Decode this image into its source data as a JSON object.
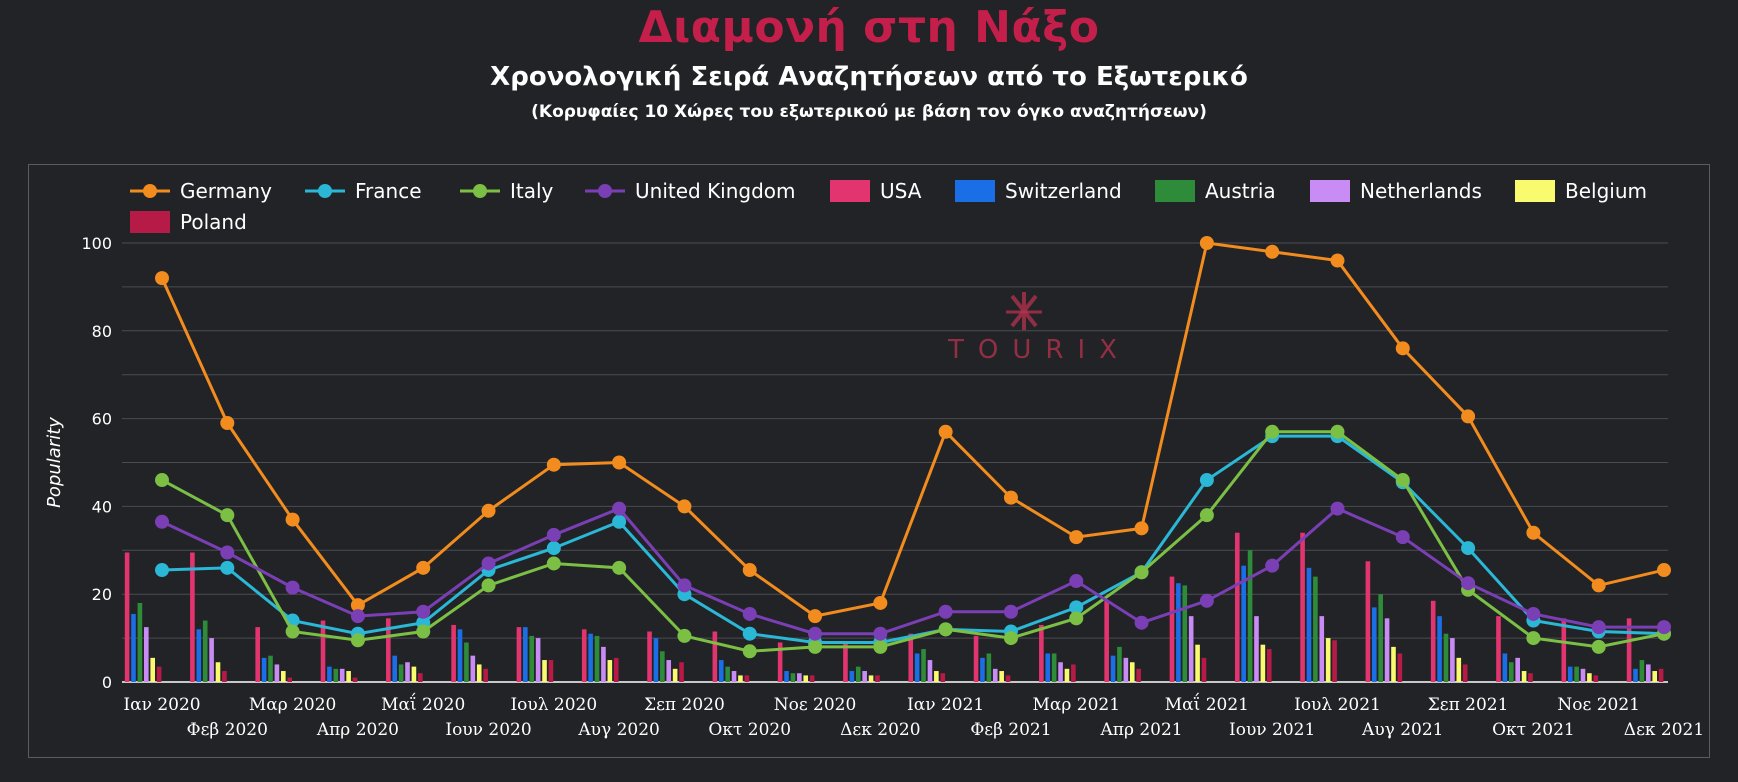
{
  "header": {
    "title": "Διαμονή στη Νάξο",
    "subtitle": "Χρονολογική Σειρά Αναζητήσεων από το Εξωτερικό",
    "note": "(Κορυφαίες 10 Χώρες του εξωτερικού με βάση τον όγκο αναζητήσεων)"
  },
  "watermark": {
    "text": "TOURIX"
  },
  "chart_data": {
    "type": "bar+line",
    "ylabel": "Popularity",
    "ylim": [
      0,
      100
    ],
    "yticks": [
      0,
      20,
      40,
      60,
      80,
      100
    ],
    "grid": true,
    "legend_position": "top",
    "categories": [
      "Ιαν 2020",
      "Φεβ 2020",
      "Μαρ 2020",
      "Απρ 2020",
      "Μαΐ 2020",
      "Ιουν 2020",
      "Ιουλ 2020",
      "Αυγ 2020",
      "Σεπ 2020",
      "Οκτ 2020",
      "Νοε 2020",
      "Δεκ 2020",
      "Ιαν 2021",
      "Φεβ 2021",
      "Μαρ 2021",
      "Απρ 2021",
      "Μαΐ 2021",
      "Ιουν 2021",
      "Ιουλ 2021",
      "Αυγ 2021",
      "Σεπ 2021",
      "Οκτ 2021",
      "Νοε 2021",
      "Δεκ 2021"
    ],
    "line_series": [
      {
        "name": "Germany",
        "color": "#f28c1e",
        "values": [
          92,
          59,
          37,
          17.5,
          26,
          39,
          49.5,
          50,
          40,
          25.5,
          15,
          18,
          57,
          42,
          33,
          35,
          100,
          98,
          96,
          76,
          60.5,
          34,
          22,
          25.5
        ]
      },
      {
        "name": "France",
        "color": "#2bb7d6",
        "values": [
          25.5,
          26,
          14,
          11,
          13.5,
          25.5,
          30.5,
          36.5,
          20,
          11,
          9,
          9,
          12,
          11.5,
          17,
          25,
          46,
          56,
          56,
          45.5,
          30.5,
          14,
          11.5,
          11
        ]
      },
      {
        "name": "Italy",
        "color": "#7bbf45",
        "values": [
          46,
          38,
          11.5,
          9.5,
          11.5,
          22,
          27,
          26,
          10.5,
          7,
          8,
          8,
          12,
          10,
          14.5,
          25,
          38,
          57,
          57,
          46,
          21,
          10,
          8,
          11
        ]
      },
      {
        "name": "United Kingdom",
        "color": "#7a3fb5",
        "values": [
          36.5,
          29.5,
          21.5,
          15,
          16,
          27,
          33.5,
          39.5,
          22,
          15.5,
          11,
          11,
          16,
          16,
          23,
          13.5,
          18.5,
          26.5,
          39.5,
          33,
          22.5,
          15.5,
          12.5,
          12.5
        ]
      }
    ],
    "bar_series": [
      {
        "name": "USA",
        "color": "#e2356f",
        "values": [
          29.5,
          29.5,
          12.5,
          14,
          14.5,
          13,
          12.5,
          12,
          11.5,
          11.5,
          9,
          9,
          11,
          10.5,
          13,
          18.5,
          24,
          34,
          34,
          27.5,
          18.5,
          15,
          14.5,
          14.5
        ]
      },
      {
        "name": "Switzerland",
        "color": "#1a6ee6",
        "values": [
          15.5,
          12,
          5.5,
          3.5,
          6,
          12,
          12.5,
          11,
          10,
          5,
          2.5,
          2.5,
          6.5,
          5.5,
          6.5,
          6,
          22.5,
          26.5,
          26,
          17,
          15,
          6.5,
          3.5,
          3
        ]
      },
      {
        "name": "Austria",
        "color": "#2e8b3a",
        "values": [
          18,
          14,
          6,
          3,
          4,
          9,
          10.5,
          10.5,
          7,
          3.5,
          2,
          3.5,
          7.5,
          6.5,
          6.5,
          8,
          22,
          30,
          24,
          20,
          11,
          4.5,
          3.5,
          5
        ]
      },
      {
        "name": "Netherlands",
        "color": "#c98cf5",
        "values": [
          12.5,
          10,
          4,
          3,
          4.5,
          6,
          10,
          8,
          5,
          2.5,
          2,
          2.5,
          5,
          3,
          4.5,
          5.5,
          15,
          15,
          15,
          14.5,
          10,
          5.5,
          3,
          4
        ]
      },
      {
        "name": "Belgium",
        "color": "#fafa6e",
        "values": [
          5.5,
          4.5,
          2.5,
          2.5,
          3.5,
          4,
          5,
          5,
          3,
          1.5,
          1.5,
          1.5,
          2.5,
          2.5,
          3,
          4.5,
          8.5,
          8.5,
          10,
          8,
          5.5,
          2.5,
          2,
          2.5
        ]
      },
      {
        "name": "Poland",
        "color": "#b61b48",
        "values": [
          3.5,
          2.5,
          1,
          1,
          2,
          3,
          5,
          5.5,
          4.5,
          1.5,
          1.5,
          1.5,
          2,
          1.5,
          4,
          3,
          5.5,
          7.5,
          9.5,
          6.5,
          4,
          2,
          1.5,
          3
        ]
      }
    ]
  }
}
